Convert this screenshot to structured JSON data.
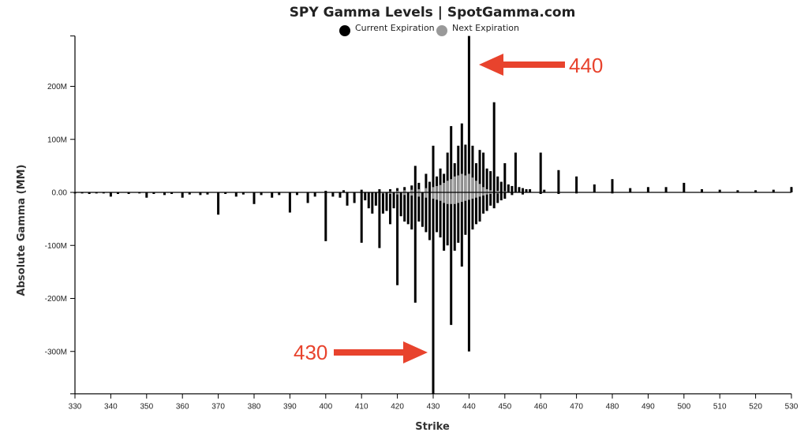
{
  "chart_data": {
    "type": "bar",
    "title": "SPY Gamma Levels | SpotGamma.com",
    "xlabel": "Strike",
    "ylabel": "Absolute Gamma (MM)",
    "xlim": [
      330,
      530
    ],
    "ylim": [
      -380,
      295
    ],
    "x_ticks": [
      "330",
      "340",
      "350",
      "360",
      "370",
      "380",
      "390",
      "400",
      "410",
      "420",
      "430",
      "440",
      "450",
      "460",
      "470",
      "480",
      "490",
      "500",
      "510",
      "520",
      "530"
    ],
    "y_ticks": [
      {
        "value": 200,
        "label": "200M"
      },
      {
        "value": 100,
        "label": "100M"
      },
      {
        "value": 0,
        "label": "0.00"
      },
      {
        "value": -100,
        "label": "-100M"
      },
      {
        "value": -200,
        "label": "-200M"
      },
      {
        "value": -300,
        "label": "-300M"
      }
    ],
    "legend_position": "top-center",
    "series": [
      {
        "name": "Current Expiration",
        "color": "#000000",
        "positive": [
          [
            400,
            3
          ],
          [
            405,
            4
          ],
          [
            410,
            5
          ],
          [
            415,
            6
          ],
          [
            418,
            6
          ],
          [
            420,
            8
          ],
          [
            422,
            10
          ],
          [
            424,
            13
          ],
          [
            425,
            50
          ],
          [
            426,
            18
          ],
          [
            428,
            35
          ],
          [
            429,
            20
          ],
          [
            430,
            88
          ],
          [
            431,
            30
          ],
          [
            432,
            45
          ],
          [
            433,
            35
          ],
          [
            434,
            75
          ],
          [
            435,
            125
          ],
          [
            436,
            55
          ],
          [
            437,
            88
          ],
          [
            438,
            130
          ],
          [
            439,
            90
          ],
          [
            440,
            295
          ],
          [
            441,
            88
          ],
          [
            442,
            55
          ],
          [
            443,
            80
          ],
          [
            444,
            75
          ],
          [
            445,
            45
          ],
          [
            446,
            40
          ],
          [
            447,
            170
          ],
          [
            448,
            30
          ],
          [
            449,
            20
          ],
          [
            450,
            55
          ],
          [
            451,
            15
          ],
          [
            452,
            12
          ],
          [
            453,
            75
          ],
          [
            454,
            10
          ],
          [
            455,
            8
          ],
          [
            456,
            6
          ],
          [
            457,
            6
          ],
          [
            460,
            75
          ],
          [
            461,
            5
          ],
          [
            465,
            42
          ],
          [
            470,
            30
          ],
          [
            475,
            15
          ],
          [
            480,
            25
          ],
          [
            485,
            8
          ],
          [
            490,
            10
          ],
          [
            495,
            10
          ],
          [
            500,
            18
          ],
          [
            505,
            6
          ],
          [
            510,
            5
          ],
          [
            515,
            4
          ],
          [
            520,
            4
          ],
          [
            525,
            5
          ],
          [
            530,
            10
          ]
        ],
        "negative": [
          [
            330,
            2
          ],
          [
            332,
            2
          ],
          [
            334,
            3
          ],
          [
            336,
            2
          ],
          [
            338,
            2
          ],
          [
            340,
            8
          ],
          [
            342,
            3
          ],
          [
            345,
            3
          ],
          [
            348,
            2
          ],
          [
            350,
            10
          ],
          [
            352,
            3
          ],
          [
            355,
            5
          ],
          [
            357,
            3
          ],
          [
            360,
            10
          ],
          [
            362,
            4
          ],
          [
            365,
            5
          ],
          [
            367,
            4
          ],
          [
            370,
            42
          ],
          [
            372,
            3
          ],
          [
            375,
            8
          ],
          [
            377,
            4
          ],
          [
            380,
            22
          ],
          [
            382,
            5
          ],
          [
            385,
            10
          ],
          [
            387,
            5
          ],
          [
            390,
            38
          ],
          [
            392,
            5
          ],
          [
            395,
            20
          ],
          [
            397,
            8
          ],
          [
            400,
            92
          ],
          [
            402,
            8
          ],
          [
            404,
            10
          ],
          [
            406,
            25
          ],
          [
            408,
            20
          ],
          [
            410,
            95
          ],
          [
            411,
            15
          ],
          [
            412,
            30
          ],
          [
            413,
            40
          ],
          [
            414,
            25
          ],
          [
            415,
            105
          ],
          [
            416,
            40
          ],
          [
            417,
            35
          ],
          [
            418,
            60
          ],
          [
            419,
            30
          ],
          [
            420,
            175
          ],
          [
            421,
            45
          ],
          [
            422,
            55
          ],
          [
            423,
            60
          ],
          [
            424,
            70
          ],
          [
            425,
            208
          ],
          [
            426,
            55
          ],
          [
            427,
            65
          ],
          [
            428,
            75
          ],
          [
            429,
            90
          ],
          [
            430,
            380
          ],
          [
            431,
            75
          ],
          [
            432,
            85
          ],
          [
            433,
            110
          ],
          [
            434,
            100
          ],
          [
            435,
            250
          ],
          [
            436,
            110
          ],
          [
            437,
            95
          ],
          [
            438,
            140
          ],
          [
            439,
            80
          ],
          [
            440,
            300
          ],
          [
            441,
            70
          ],
          [
            442,
            60
          ],
          [
            443,
            55
          ],
          [
            444,
            40
          ],
          [
            445,
            35
          ],
          [
            446,
            25
          ],
          [
            447,
            30
          ],
          [
            448,
            20
          ],
          [
            449,
            15
          ],
          [
            450,
            12
          ],
          [
            452,
            5
          ],
          [
            455,
            4
          ],
          [
            460,
            3
          ],
          [
            465,
            3
          ],
          [
            470,
            2
          ],
          [
            480,
            2
          ]
        ]
      },
      {
        "name": "Next Expiration",
        "color": "#999999",
        "positive": [
          [
            418,
            2
          ],
          [
            420,
            3
          ],
          [
            422,
            4
          ],
          [
            424,
            5
          ],
          [
            426,
            6
          ],
          [
            428,
            8
          ],
          [
            430,
            10
          ],
          [
            431,
            12
          ],
          [
            432,
            14
          ],
          [
            433,
            18
          ],
          [
            434,
            22
          ],
          [
            435,
            25
          ],
          [
            436,
            30
          ],
          [
            437,
            32
          ],
          [
            438,
            35
          ],
          [
            439,
            32
          ],
          [
            440,
            35
          ],
          [
            441,
            28
          ],
          [
            442,
            22
          ],
          [
            443,
            16
          ],
          [
            444,
            10
          ],
          [
            445,
            6
          ],
          [
            446,
            4
          ],
          [
            448,
            3
          ],
          [
            450,
            2
          ]
        ],
        "negative": [
          [
            416,
            2
          ],
          [
            418,
            3
          ],
          [
            420,
            4
          ],
          [
            422,
            5
          ],
          [
            424,
            6
          ],
          [
            426,
            8
          ],
          [
            428,
            10
          ],
          [
            430,
            12
          ],
          [
            431,
            14
          ],
          [
            432,
            16
          ],
          [
            433,
            20
          ],
          [
            434,
            22
          ],
          [
            435,
            22
          ],
          [
            436,
            22
          ],
          [
            437,
            20
          ],
          [
            438,
            18
          ],
          [
            439,
            16
          ],
          [
            440,
            14
          ],
          [
            441,
            12
          ],
          [
            442,
            10
          ],
          [
            443,
            8
          ],
          [
            444,
            6
          ],
          [
            445,
            4
          ],
          [
            446,
            3
          ],
          [
            448,
            2
          ]
        ]
      }
    ],
    "annotations": [
      {
        "text": "440",
        "color": "#e8432d"
      },
      {
        "text": "430",
        "color": "#e8432d"
      }
    ]
  }
}
